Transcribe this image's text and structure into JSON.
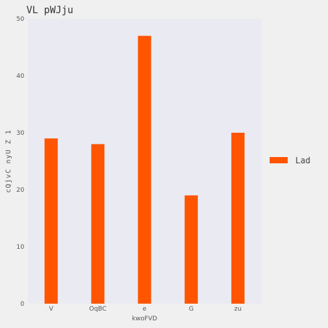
{
  "chart_data": {
    "type": "bar",
    "title": "VL pWJju",
    "xlabel": "kwoFVD",
    "ylabel": "cQjvC nyU Z 1",
    "categories": [
      "V",
      "OqBC",
      "e",
      "G",
      "zu"
    ],
    "series": [
      {
        "name": "Lad",
        "values": [
          29,
          28,
          47,
          19,
          30
        ],
        "color": "#ff5500"
      }
    ],
    "ylim": [
      0,
      50
    ],
    "yticks": [
      0,
      10,
      20,
      30,
      40,
      50
    ],
    "grid": false,
    "legend_position": "right",
    "plot_background": "#eaeaf2"
  }
}
